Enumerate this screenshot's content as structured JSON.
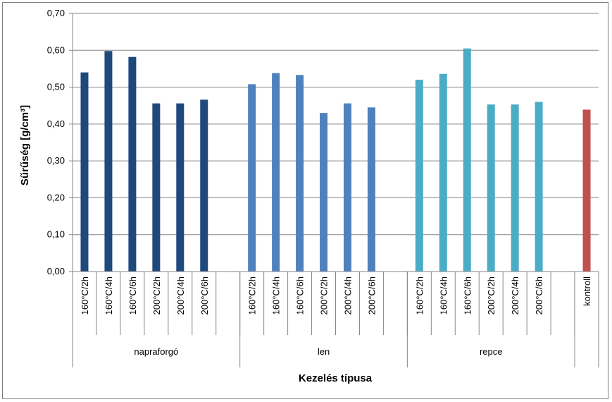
{
  "chart_data": {
    "type": "bar",
    "title": "",
    "xlabel": "Kezelés típusa",
    "ylabel": "Sűrűség [g/cm³]",
    "ylim": [
      0,
      0.7
    ],
    "yticks": [
      "0,00",
      "0,10",
      "0,20",
      "0,30",
      "0,40",
      "0,50",
      "0,60",
      "0,70"
    ],
    "grid": true,
    "legend": "none",
    "groups": [
      {
        "name": "napraforgó",
        "color": "#1f497d",
        "categories": [
          "160°C/2h",
          "160°C/4h",
          "160°C/6h",
          "200°C/2h",
          "200°C/4h",
          "200°C/6h"
        ],
        "values": [
          0.54,
          0.598,
          0.582,
          0.456,
          0.456,
          0.466
        ]
      },
      {
        "name": "len",
        "color": "#4f81bd",
        "categories": [
          "160°C/2h",
          "160°C/4h",
          "160°C/6h",
          "200°C/2h",
          "200°C/4h",
          "200°C/6h"
        ],
        "values": [
          0.508,
          0.538,
          0.533,
          0.43,
          0.456,
          0.445
        ]
      },
      {
        "name": "repce",
        "color": "#4bacc6",
        "categories": [
          "160°C/2h",
          "160°C/4h",
          "160°C/6h",
          "200°C/2h",
          "200°C/4h",
          "200°C/6h"
        ],
        "values": [
          0.52,
          0.536,
          0.605,
          0.453,
          0.453,
          0.46
        ]
      },
      {
        "name": "",
        "color": "#c0504d",
        "categories": [
          "kontroll"
        ],
        "values": [
          0.439
        ]
      }
    ]
  }
}
